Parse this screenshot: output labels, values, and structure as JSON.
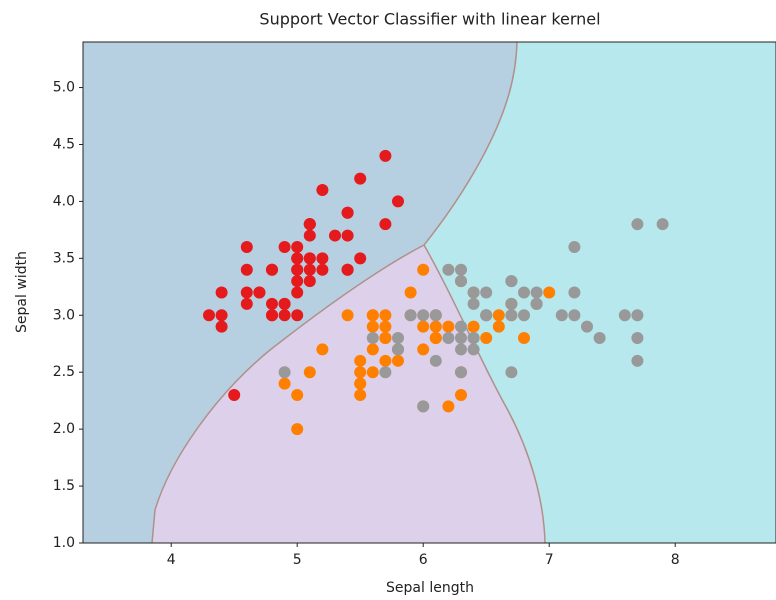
{
  "chart_data": {
    "type": "scatter",
    "title": "Support Vector Classifier with linear kernel",
    "x_label": "Sepal length",
    "y_label": "Sepal width",
    "xlim": [
      3.3,
      8.8
    ],
    "ylim": [
      1.0,
      5.4
    ],
    "xticks": [
      4,
      5,
      6,
      7,
      8
    ],
    "yticks": [
      {
        "value": 1.0,
        "label": "1.0"
      },
      1.5,
      {
        "value": 2.0,
        "label": "2.0"
      },
      2.5,
      {
        "value": 3.0,
        "label": "3.0"
      },
      3.5,
      {
        "value": 4.0,
        "label": "4.0"
      },
      4.5,
      {
        "value": 5.0,
        "label": "5.0"
      }
    ],
    "series": [
      {
        "color": "#e41a1c",
        "x": [
          5.1,
          4.9,
          4.7,
          4.6,
          5.0,
          5.4,
          4.6,
          5.0,
          4.4,
          4.9,
          5.4,
          4.8,
          4.8,
          4.3,
          5.8,
          5.7,
          5.4,
          5.1,
          5.7,
          5.1,
          5.4,
          5.1,
          4.6,
          5.1,
          4.8,
          5.0,
          5.0,
          5.2,
          5.2,
          4.7,
          4.8,
          5.4,
          5.2,
          5.5,
          4.9,
          5.0,
          5.5,
          4.9,
          4.4,
          5.1,
          5.0,
          4.5,
          4.4,
          5.0,
          5.1,
          4.8,
          5.1,
          4.6,
          5.3,
          5.0
        ],
        "values": [
          3.5,
          3.0,
          3.2,
          3.1,
          3.6,
          3.9,
          3.4,
          3.4,
          2.9,
          3.1,
          3.7,
          3.4,
          3.0,
          3.0,
          4.0,
          4.4,
          3.9,
          3.5,
          3.8,
          3.8,
          3.4,
          3.7,
          3.6,
          3.3,
          3.4,
          3.0,
          3.4,
          3.5,
          3.4,
          3.2,
          3.1,
          3.4,
          4.1,
          4.2,
          3.1,
          3.2,
          3.5,
          3.6,
          3.0,
          3.4,
          3.5,
          2.3,
          3.2,
          3.5,
          3.8,
          3.0,
          3.8,
          3.2,
          3.7,
          3.3
        ]
      },
      {
        "color": "#ff7f00",
        "x": [
          7.0,
          6.4,
          6.9,
          5.5,
          6.5,
          5.7,
          6.3,
          4.9,
          6.6,
          5.2,
          5.0,
          5.9,
          6.0,
          6.1,
          5.6,
          6.7,
          5.6,
          5.8,
          6.2,
          5.6,
          5.9,
          6.1,
          6.3,
          6.1,
          6.4,
          6.6,
          6.8,
          6.7,
          6.0,
          5.7,
          5.5,
          5.5,
          5.8,
          6.0,
          5.4,
          6.0,
          6.7,
          6.3,
          5.6,
          5.5,
          5.5,
          6.1,
          5.8,
          5.0,
          5.6,
          5.7,
          5.7,
          6.2,
          5.1,
          5.7
        ],
        "values": [
          3.2,
          3.2,
          3.1,
          2.3,
          2.8,
          2.8,
          3.3,
          2.4,
          2.9,
          2.7,
          2.0,
          3.0,
          2.2,
          2.9,
          2.9,
          3.1,
          3.0,
          2.7,
          2.2,
          2.5,
          3.2,
          2.8,
          2.5,
          2.8,
          2.9,
          3.0,
          2.8,
          3.0,
          2.9,
          2.6,
          2.4,
          2.4,
          2.7,
          2.7,
          3.0,
          3.4,
          3.1,
          2.3,
          3.0,
          2.5,
          2.6,
          3.0,
          2.6,
          2.3,
          2.7,
          3.0,
          2.9,
          2.9,
          2.5,
          2.8
        ]
      },
      {
        "color": "#999999",
        "x": [
          6.3,
          5.8,
          7.1,
          6.3,
          6.5,
          7.6,
          4.9,
          7.3,
          6.7,
          7.2,
          6.5,
          6.4,
          6.8,
          5.7,
          5.8,
          6.4,
          6.5,
          7.7,
          7.7,
          6.0,
          6.9,
          5.6,
          7.7,
          6.3,
          6.7,
          7.2,
          6.2,
          6.1,
          6.4,
          7.2,
          7.4,
          7.9,
          6.4,
          6.3,
          6.1,
          7.7,
          6.3,
          6.4,
          6.0,
          6.9,
          6.7,
          6.9,
          5.8,
          6.8,
          6.7,
          6.7,
          6.3,
          6.5,
          6.2,
          5.9
        ],
        "values": [
          3.3,
          2.7,
          3.0,
          2.9,
          3.0,
          3.0,
          2.5,
          2.9,
          2.5,
          3.6,
          3.2,
          2.7,
          3.0,
          2.5,
          2.8,
          3.2,
          3.0,
          3.8,
          2.6,
          2.2,
          3.2,
          2.8,
          2.8,
          2.7,
          3.3,
          3.2,
          2.8,
          3.0,
          2.8,
          3.0,
          2.8,
          3.8,
          2.8,
          2.8,
          2.6,
          3.0,
          3.4,
          3.1,
          3.0,
          3.1,
          3.1,
          3.1,
          2.7,
          3.2,
          3.3,
          3.0,
          2.5,
          3.0,
          3.4,
          3.0
        ]
      }
    ]
  }
}
